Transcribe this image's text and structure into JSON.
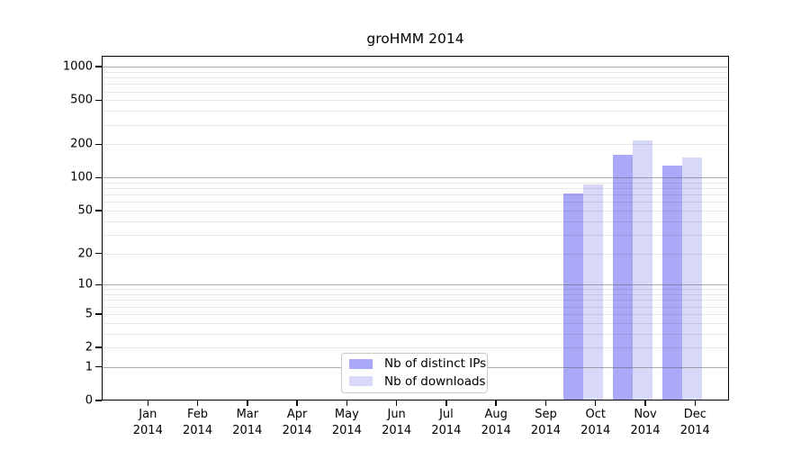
{
  "chart_data": {
    "type": "bar",
    "title": "groHMM 2014",
    "xlabel": "",
    "ylabel": "",
    "year_label": "2014",
    "months": [
      "Jan",
      "Feb",
      "Mar",
      "Apr",
      "May",
      "Jun",
      "Jul",
      "Aug",
      "Sep",
      "Oct",
      "Nov",
      "Dec"
    ],
    "series": [
      {
        "name": "Nb of distinct IPs",
        "color": "#a9a9f8",
        "values": [
          0,
          0,
          0,
          0,
          0,
          0,
          0,
          0,
          0,
          71,
          161,
          128
        ]
      },
      {
        "name": "Nb of downloads",
        "color": "#d8d8f8",
        "values": [
          0,
          0,
          0,
          0,
          0,
          0,
          0,
          0,
          0,
          86,
          218,
          152
        ]
      }
    ],
    "y_scale": "log1p",
    "ylim": [
      0,
      1255
    ],
    "y_ticks": [
      0,
      1,
      2,
      5,
      10,
      20,
      50,
      100,
      200,
      500,
      1000
    ],
    "gridlines": {
      "orientation": "horizontal",
      "major": [
        1,
        10,
        100,
        1000
      ],
      "minor": [
        2,
        3,
        4,
        5,
        6,
        7,
        8,
        9,
        20,
        30,
        40,
        50,
        60,
        70,
        80,
        90,
        200,
        300,
        400,
        500,
        600,
        700,
        800,
        900
      ]
    },
    "legend": {
      "position": "bottom-center-inside",
      "entries": [
        {
          "label": "Nb of distinct IPs",
          "color": "#a9a9f8"
        },
        {
          "label": "Nb of downloads",
          "color": "#d8d8f8"
        }
      ]
    }
  }
}
